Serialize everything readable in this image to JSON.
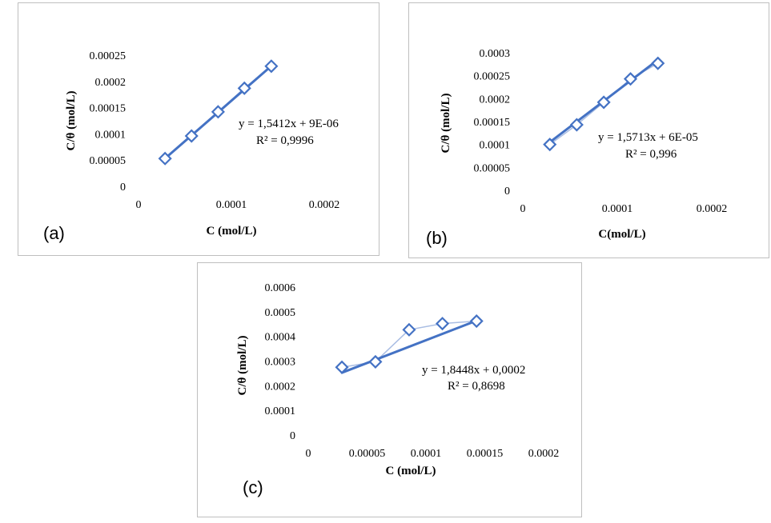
{
  "colors": {
    "series": "#4472c4",
    "thin_line": "#a9bde3",
    "panel_border": "#bfbfbf",
    "text": "#000000"
  },
  "chart_data": [
    {
      "id": "a",
      "type": "scatter",
      "panel_label": "(a)",
      "title": "",
      "xlabel": "C (mol/L)",
      "ylabel": "C/θ (mol/L)",
      "x_ticks": [
        "0",
        "0.0001",
        "0.0002"
      ],
      "x_tick_values": [
        0,
        0.0001,
        0.0002
      ],
      "y_ticks": [
        "0",
        "0.00005",
        "0.0001",
        "0.00015",
        "0.0002",
        "0.00025"
      ],
      "y_tick_values": [
        0,
        5e-05,
        0.0001,
        0.00015,
        0.0002,
        0.00025
      ],
      "xlim": [
        0,
        0.0002
      ],
      "ylim": [
        0,
        0.00025
      ],
      "grid": false,
      "series": [
        {
          "x": [
            2.86e-05,
            5.71e-05,
            8.57e-05,
            0.000114,
            0.000143
          ],
          "y": [
            5.3e-05,
            9.6e-05,
            0.000142,
            0.000187,
            0.000229
          ]
        }
      ],
      "trendline": {
        "slope": 1.5412,
        "intercept": 9e-06
      },
      "equation": "y = 1,5412x + 9E-06",
      "r2": "R² = 0,9996"
    },
    {
      "id": "b",
      "type": "scatter",
      "panel_label": "(b)",
      "title": "",
      "xlabel": "C(mol/L)",
      "ylabel": "C/θ (mol/L)",
      "x_ticks": [
        "0",
        "0.0001",
        "0.0002"
      ],
      "x_tick_values": [
        0,
        0.0001,
        0.0002
      ],
      "y_ticks": [
        "0",
        "0.00005",
        "0.0001",
        "0.00015",
        "0.0002",
        "0.00025",
        "0.0003"
      ],
      "y_tick_values": [
        0,
        5e-05,
        0.0001,
        0.00015,
        0.0002,
        0.00025,
        0.0003
      ],
      "xlim": [
        0,
        0.0002
      ],
      "ylim": [
        0,
        0.0003
      ],
      "grid": false,
      "series": [
        {
          "x": [
            2.86e-05,
            5.71e-05,
            8.57e-05,
            0.000114,
            0.000143
          ],
          "y": [
            0.0001,
            0.000143,
            0.000192,
            0.000243,
            0.000277
          ]
        }
      ],
      "trendline": {
        "slope": 1.5713,
        "intercept": 6e-05
      },
      "equation": "y = 1,5713x + 6E-05",
      "r2": "R² = 0,996"
    },
    {
      "id": "c",
      "type": "scatter",
      "panel_label": "(c)",
      "title": "",
      "xlabel": "C (mol/L)",
      "ylabel": "C/θ (mol/L)",
      "x_ticks": [
        "0",
        "0.00005",
        "0.0001",
        "0.00015",
        "0.0002"
      ],
      "x_tick_values": [
        0,
        5e-05,
        0.0001,
        0.00015,
        0.0002
      ],
      "y_ticks": [
        "0",
        "0.0001",
        "0.0002",
        "0.0003",
        "0.0004",
        "0.0005",
        "0.0006"
      ],
      "y_tick_values": [
        0,
        0.0001,
        0.0002,
        0.0003,
        0.0004,
        0.0005,
        0.0006
      ],
      "xlim": [
        0,
        0.0002
      ],
      "ylim": [
        0,
        0.0006
      ],
      "grid": false,
      "series": [
        {
          "x": [
            2.86e-05,
            5.71e-05,
            8.57e-05,
            0.000114,
            0.000143
          ],
          "y": [
            0.000275,
            0.000297,
            0.000427,
            0.000452,
            0.000462
          ]
        }
      ],
      "trendline": {
        "slope": 1.8448,
        "intercept": 0.0002
      },
      "equation": "y = 1,8448x + 0,0002",
      "r2": "R² = 0,8698"
    }
  ]
}
